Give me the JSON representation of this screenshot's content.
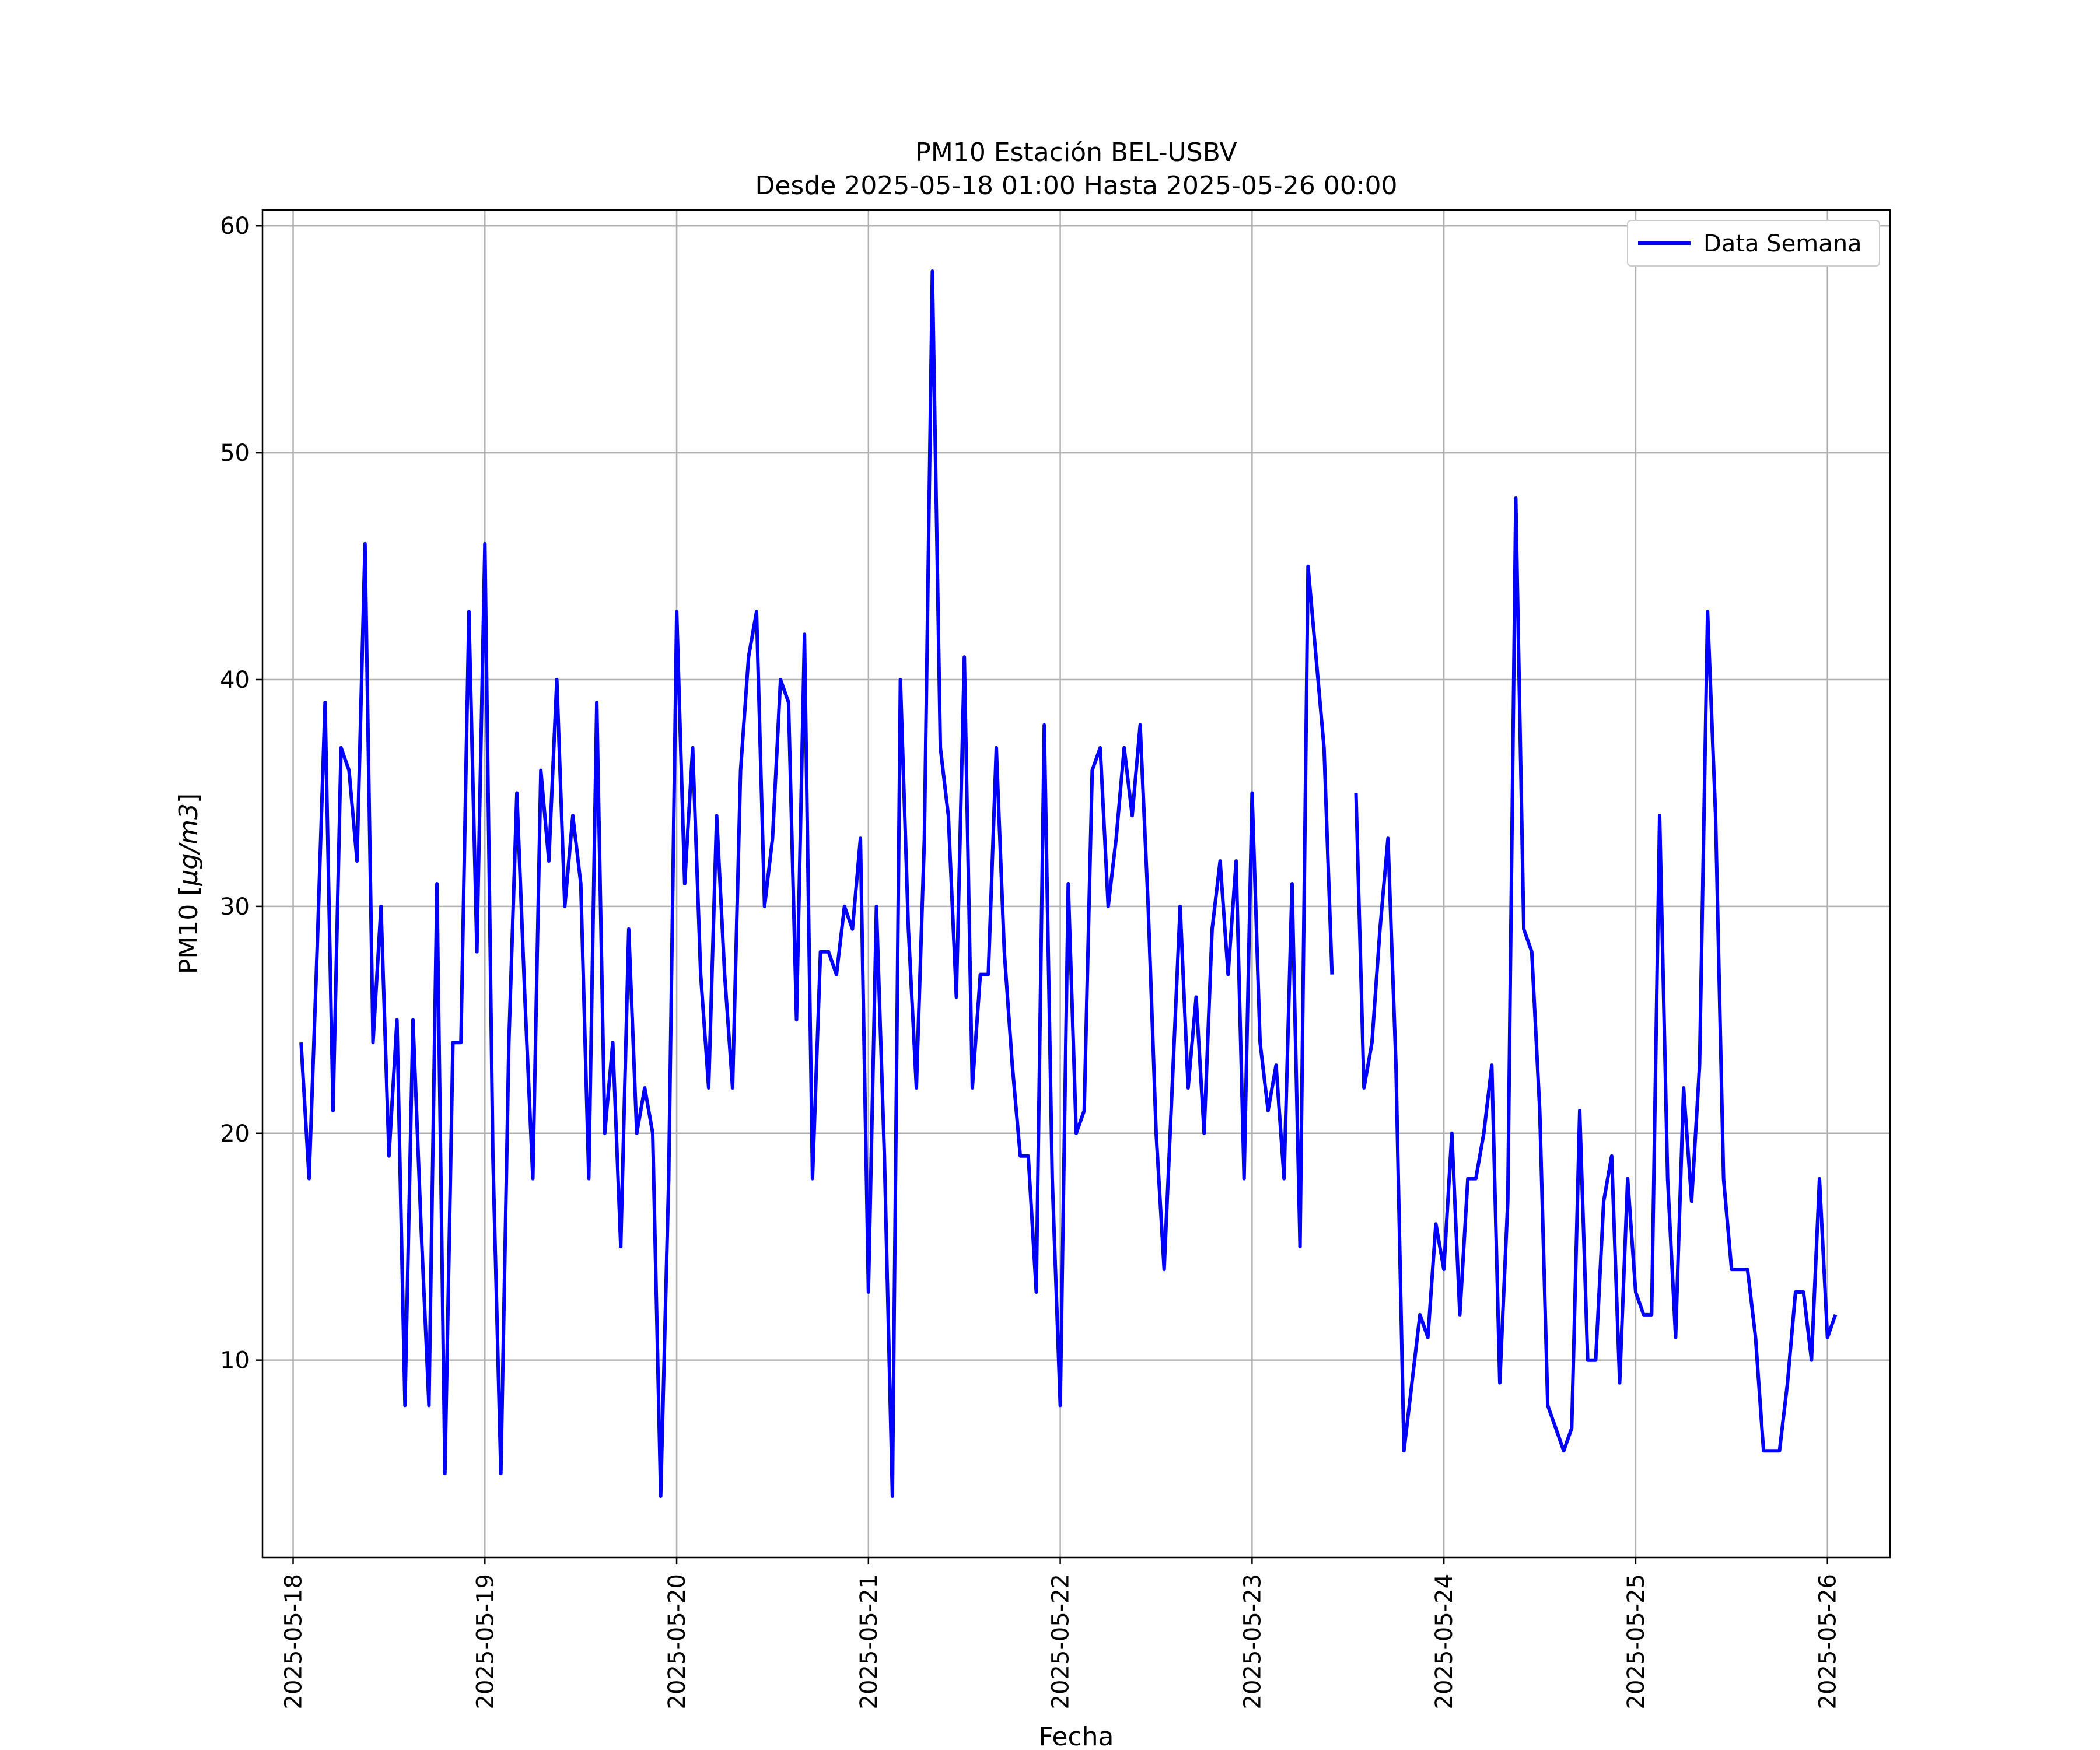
{
  "chart_data": {
    "type": "line",
    "title": "PM10 Estación BEL-USBV",
    "subtitle": "Desde 2025-05-18 01:00 Hasta 2025-05-26 00:00",
    "xlabel": "Fecha",
    "ylabel_prefix": "PM10 [",
    "ylabel_unit": "µg/m3",
    "ylabel_suffix": "]",
    "x_ticks": [
      "2025-05-18",
      "2025-05-19",
      "2025-05-20",
      "2025-05-21",
      "2025-05-22",
      "2025-05-23",
      "2025-05-24",
      "2025-05-25",
      "2025-05-26"
    ],
    "y_ticks": [
      10,
      20,
      30,
      40,
      50,
      60
    ],
    "xlim": [
      "2025-05-17 20:10",
      "2025-05-26 07:50"
    ],
    "ylim": [
      1.3,
      60.7
    ],
    "grid": true,
    "legend_position": "top-right",
    "series": [
      {
        "name": "Data Semana",
        "color": "#0000ff",
        "start": "2025-05-18 01:00",
        "step_hours": 1,
        "values": [
          24,
          18,
          28,
          39,
          21,
          37,
          36,
          32,
          46,
          24,
          30,
          19,
          25,
          8,
          25,
          16,
          8,
          31,
          5,
          24,
          24,
          43,
          28,
          46,
          19,
          5,
          24,
          35,
          26,
          18,
          36,
          32,
          40,
          30,
          34,
          31,
          18,
          39,
          20,
          24,
          15,
          29,
          20,
          22,
          20,
          4,
          18,
          43,
          31,
          37,
          27,
          22,
          34,
          27,
          22,
          36,
          41,
          43,
          30,
          33,
          40,
          39,
          25,
          42,
          18,
          28,
          28,
          27,
          30,
          29,
          33,
          13,
          30,
          19,
          4,
          40,
          29,
          22,
          33,
          58,
          37,
          34,
          26,
          41,
          22,
          27,
          27,
          37,
          28,
          23,
          19,
          19,
          13,
          38,
          18,
          8,
          31,
          20,
          21,
          36,
          37,
          30,
          33,
          37,
          34,
          38,
          30,
          20,
          14,
          22,
          30,
          22,
          26,
          20,
          29,
          32,
          27,
          32,
          18,
          35,
          24,
          21,
          23,
          18,
          31,
          15,
          45,
          41,
          37,
          27,
          null,
          null,
          35,
          22,
          24,
          29,
          33,
          23,
          6,
          9,
          12,
          11,
          16,
          14,
          20,
          12,
          18,
          18,
          20,
          23,
          9,
          17,
          48,
          29,
          28,
          21,
          8,
          7,
          6,
          7,
          21,
          10,
          10,
          17,
          19,
          9,
          18,
          13,
          12,
          12,
          34,
          18,
          11,
          22,
          17,
          23,
          43,
          34,
          18,
          14,
          14,
          14,
          11,
          6,
          6,
          6,
          9,
          13,
          13,
          10,
          18,
          11,
          12
        ]
      }
    ]
  }
}
